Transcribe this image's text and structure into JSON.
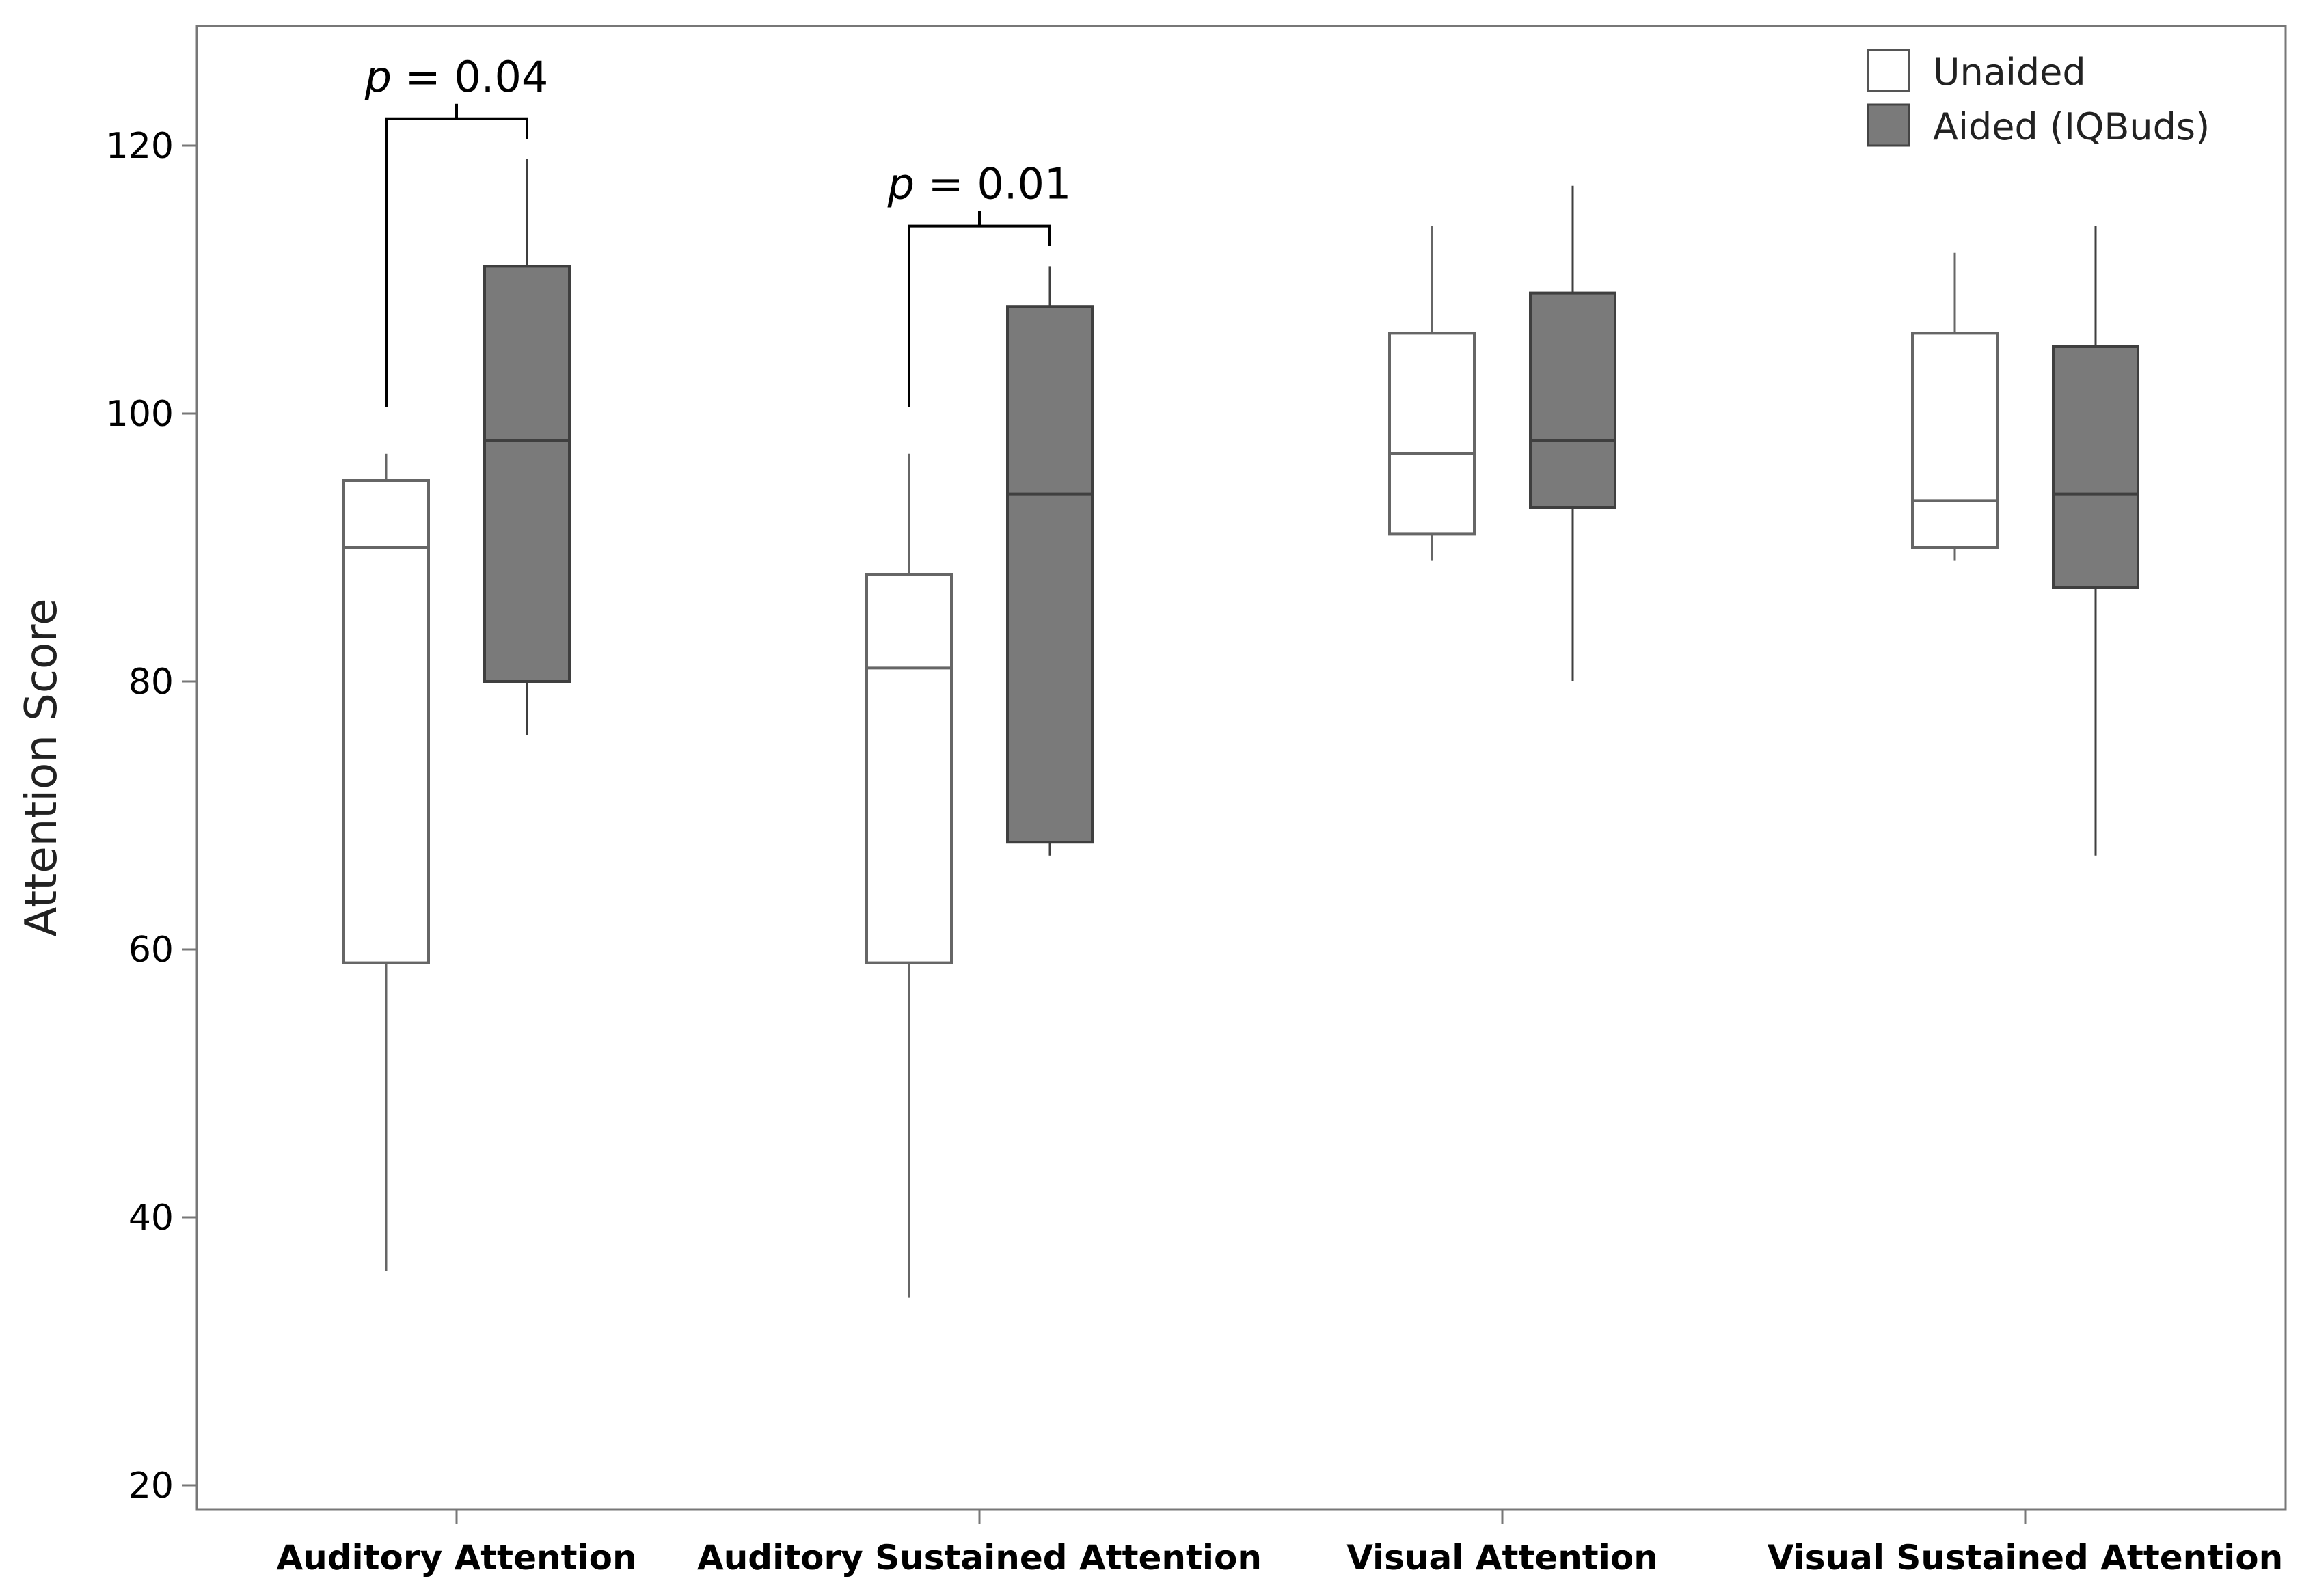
{
  "chart_data": {
    "type": "boxplot",
    "title": "",
    "xlabel": "",
    "ylabel": "Attention Score",
    "ylim": [
      18,
      128
    ],
    "yticks": [
      20,
      40,
      60,
      80,
      100,
      120
    ],
    "categories": [
      "Auditory Attention",
      "Auditory Sustained Attention",
      "Visual Attention",
      "Visual Sustained Attention"
    ],
    "legend": {
      "position": "top-right"
    },
    "series": [
      {
        "name": "Unaided",
        "color": "#ffffff",
        "boxes": [
          {
            "min": 36,
            "q1": 59,
            "median": 90,
            "q3": 95,
            "max": 97
          },
          {
            "min": 34,
            "q1": 59,
            "median": 81,
            "q3": 88,
            "max": 97
          },
          {
            "min": 89,
            "q1": 91,
            "median": 97,
            "q3": 106,
            "max": 114
          },
          {
            "min": 89,
            "q1": 90,
            "median": 93.5,
            "q3": 106,
            "max": 112
          }
        ]
      },
      {
        "name": "Aided (IQBuds)",
        "color": "#7a7a7a",
        "boxes": [
          {
            "min": 76,
            "q1": 80,
            "median": 98,
            "q3": 111,
            "max": 119
          },
          {
            "min": 67,
            "q1": 68,
            "median": 94,
            "q3": 108,
            "max": 111
          },
          {
            "min": 80,
            "q1": 93,
            "median": 98,
            "q3": 109,
            "max": 117
          },
          {
            "min": 67,
            "q1": 87,
            "median": 94,
            "q3": 105,
            "max": 114
          }
        ]
      }
    ],
    "annotations": [
      {
        "category": 0,
        "p_symbol": "p",
        "p_rest": " = 0.04",
        "bracket_level": 122,
        "left_end": 100.5,
        "right_end": 120.5
      },
      {
        "category": 1,
        "p_symbol": "p",
        "p_rest": " = 0.01",
        "bracket_level": 114,
        "left_end": 100.5,
        "right_end": 112.5
      }
    ]
  }
}
